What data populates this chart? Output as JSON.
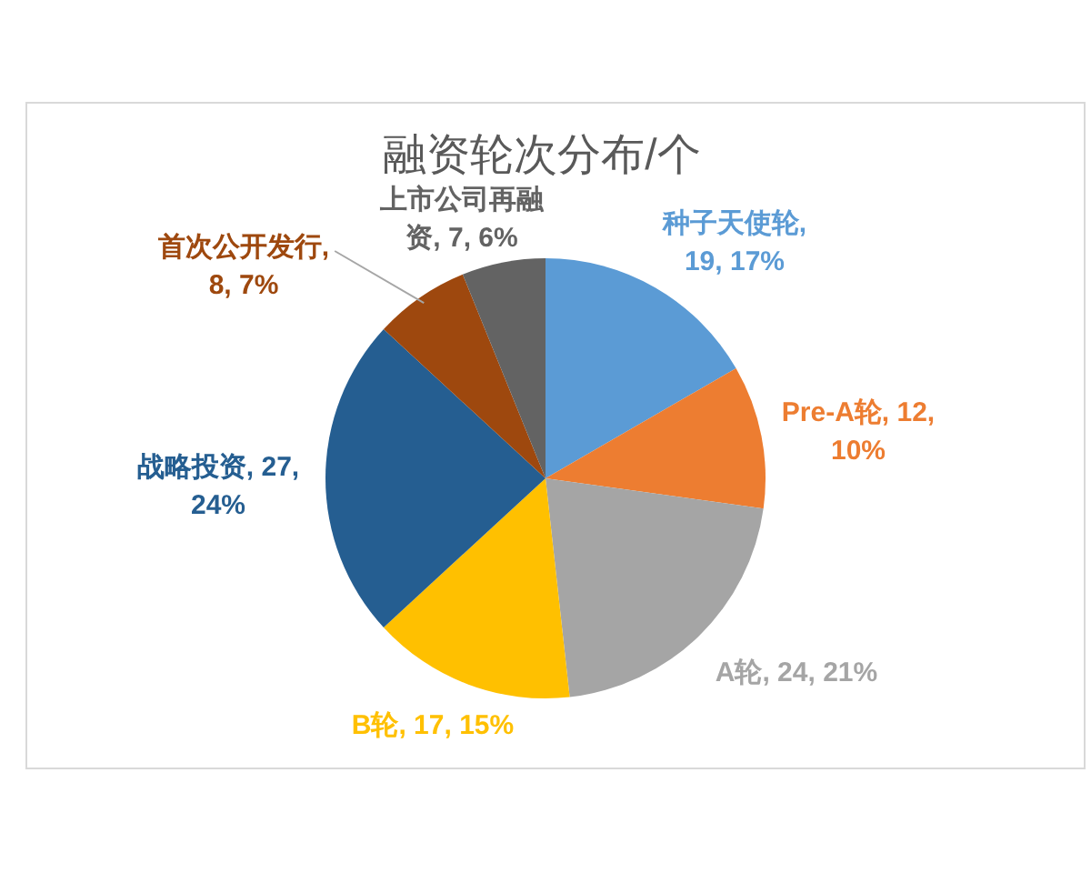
{
  "chart_data": {
    "type": "pie",
    "title": "融资轮次分布/个",
    "categories": [
      "种子天使轮",
      "Pre-A轮",
      "A轮",
      "B轮",
      "战略投资",
      "首次公开发行",
      "上市公司再融资"
    ],
    "values": [
      19,
      12,
      24,
      17,
      27,
      8,
      7
    ],
    "colors": [
      "#5b9bd5",
      "#ed7d31",
      "#a5a5a5",
      "#ffc000",
      "#255e91",
      "#9e480e",
      "#636363"
    ],
    "value_labels": [
      ", 19, 17%",
      ", 12, 10%",
      ", 24, 21%",
      ", 17, 15%",
      ", 27, 24%",
      ", 8, 7%",
      ", 7, 6%"
    ]
  }
}
